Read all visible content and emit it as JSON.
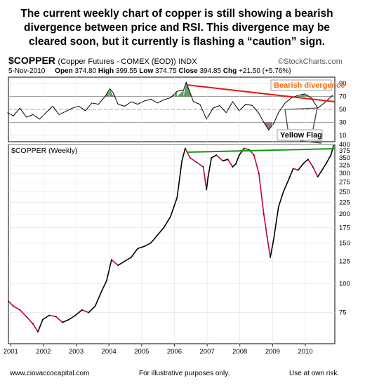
{
  "headline": {
    "line1": "The current weekly chart of copper is still showing a bearish",
    "line2": "divergence between price and RSI.  This divergence may be",
    "line3": "cleared soon, but it currently is flashing a “caution” sign."
  },
  "header": {
    "symbol": "$COPPER",
    "description": "(Copper Futures - COMEX (EOD))",
    "exchange": "INDX",
    "watermark": "©StockCharts.com",
    "date": "5-Nov-2010",
    "open_label": "Open",
    "open": "374.80",
    "high_label": "High",
    "high": "399.55",
    "low_label": "Low",
    "low": "374.75",
    "close_label": "Close",
    "close": "394.85",
    "chg_label": "Chg",
    "chg": "+21.50 (+5.76%)"
  },
  "footer": {
    "site": "www.ciovaccocapital.com",
    "note": "For illustrative purposes only.",
    "risk": "Use at own risk."
  },
  "colors": {
    "price_up": "#000000",
    "price_down": "#cc0033",
    "trend_green": "#119911",
    "trend_red": "#ee1111",
    "rsi_overbought": "#4a8a4a",
    "rsi_oversold": "#8a6060",
    "annotation_orange": "#ff6600"
  },
  "chart_data": [
    {
      "type": "line",
      "panel": "RSI indicator",
      "title": "",
      "ylim": [
        0,
        100
      ],
      "yticks": [
        10,
        30,
        50,
        70,
        90
      ],
      "levels": [
        30,
        50,
        70
      ],
      "x": [
        2000.92,
        2001.1,
        2001.3,
        2001.5,
        2001.7,
        2001.9,
        2002.1,
        2002.3,
        2002.5,
        2002.7,
        2002.9,
        2003.1,
        2003.3,
        2003.5,
        2003.7,
        2003.9,
        2004.05,
        2004.15,
        2004.3,
        2004.5,
        2004.7,
        2004.9,
        2005.1,
        2005.3,
        2005.5,
        2005.7,
        2005.9,
        2006.1,
        2006.3,
        2006.38,
        2006.6,
        2006.8,
        2007.0,
        2007.2,
        2007.4,
        2007.6,
        2007.8,
        2008.0,
        2008.2,
        2008.4,
        2008.6,
        2008.75,
        2008.9,
        2009.05,
        2009.2,
        2009.4,
        2009.6,
        2009.8,
        2010.0,
        2010.2,
        2010.4,
        2010.6,
        2010.85
      ],
      "values": [
        45,
        40,
        52,
        38,
        42,
        35,
        45,
        55,
        42,
        47,
        52,
        55,
        48,
        60,
        58,
        70,
        82,
        76,
        58,
        55,
        62,
        58,
        63,
        66,
        60,
        65,
        68,
        78,
        80,
        92,
        62,
        58,
        35,
        52,
        56,
        45,
        62,
        48,
        58,
        56,
        44,
        30,
        18,
        28,
        45,
        60,
        68,
        72,
        74,
        68,
        52,
        60,
        72
      ]
    },
    {
      "type": "line",
      "panel": "price",
      "title": "$COPPER (Weekly)",
      "yscale": "log",
      "ylim": [
        55,
        400
      ],
      "yticks": [
        75,
        100,
        125,
        150,
        175,
        200,
        225,
        250,
        275,
        300,
        325,
        350,
        375,
        400
      ],
      "xlim": [
        2000.95,
        2010.92
      ],
      "xticks": [
        "2001",
        "2002",
        "2003",
        "2004",
        "2005",
        "2006",
        "2007",
        "2008",
        "2009",
        "2010"
      ],
      "series": [
        {
          "x": [
            2000.95,
            2001.1,
            2001.3,
            2001.5,
            2001.7,
            2001.85,
            2002.0,
            2002.2,
            2002.4,
            2002.6,
            2002.8,
            2003.0,
            2003.2,
            2003.4,
            2003.6,
            2003.8,
            2003.95,
            2004.1,
            2004.3,
            2004.5,
            2004.7,
            2004.9,
            2005.1,
            2005.3,
            2005.5,
            2005.7,
            2005.9,
            2006.1,
            2006.25,
            2006.35,
            2006.5,
            2006.7,
            2006.9,
            2007.0,
            2007.05,
            2007.15,
            2007.3,
            2007.5,
            2007.65,
            2007.8,
            2007.9,
            2008.0,
            2008.15,
            2008.3,
            2008.45,
            2008.6,
            2008.75,
            2008.85,
            2008.95,
            2009.05,
            2009.2,
            2009.35,
            2009.5,
            2009.65,
            2009.8,
            2009.95,
            2010.1,
            2010.25,
            2010.4,
            2010.5,
            2010.65,
            2010.8,
            2010.88
          ],
          "values": [
            84,
            80,
            77,
            72,
            67,
            62,
            70,
            73,
            72,
            68,
            70,
            73,
            77,
            75,
            80,
            93,
            103,
            127,
            120,
            125,
            130,
            142,
            145,
            150,
            162,
            175,
            195,
            235,
            340,
            385,
            350,
            335,
            320,
            255,
            290,
            350,
            360,
            340,
            345,
            320,
            330,
            360,
            385,
            380,
            360,
            300,
            200,
            160,
            130,
            155,
            215,
            250,
            280,
            315,
            310,
            330,
            345,
            320,
            290,
            305,
            330,
            360,
            395
          ]
        }
      ]
    }
  ],
  "annotations": {
    "bearish_divergence": "Bearish divergence",
    "yellow_flag": "Yellow Flag"
  }
}
